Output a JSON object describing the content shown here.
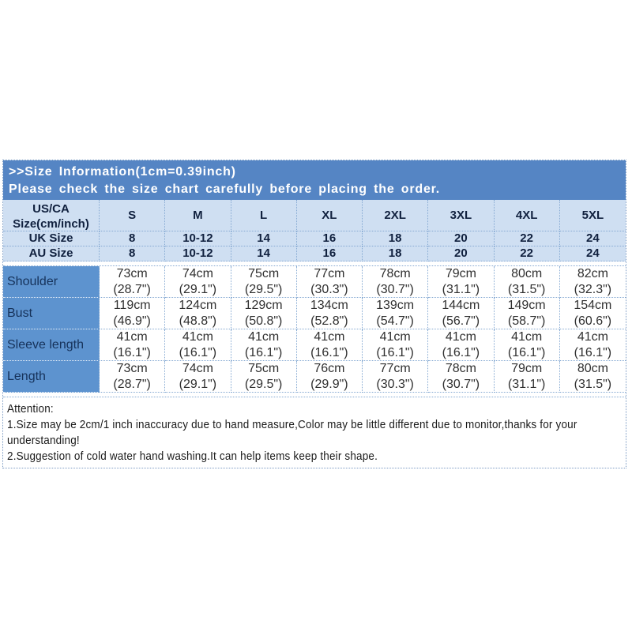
{
  "banner": {
    "title": ">>Size Information(1cm=0.39inch)",
    "subtitle": "Please check the size chart carefully before placing the order."
  },
  "table": {
    "corner": [
      "US/CA",
      "Size(cm/inch)"
    ],
    "sizes": [
      "S",
      "M",
      "L",
      "XL",
      "2XL",
      "3XL",
      "4XL",
      "5XL"
    ],
    "uk": {
      "label": "UK Size",
      "values": [
        "8",
        "10-12",
        "14",
        "16",
        "18",
        "20",
        "22",
        "24"
      ]
    },
    "au": {
      "label": "AU Size",
      "values": [
        "8",
        "10-12",
        "14",
        "16",
        "18",
        "20",
        "22",
        "24"
      ]
    },
    "rows": [
      {
        "label": "Shoulder",
        "cm": [
          "73cm",
          "74cm",
          "75cm",
          "77cm",
          "78cm",
          "79cm",
          "80cm",
          "82cm"
        ],
        "in": [
          "(28.7\")",
          "(29.1\")",
          "(29.5\")",
          "(30.3\")",
          "(30.7\")",
          "(31.1\")",
          "(31.5\")",
          "(32.3\")"
        ]
      },
      {
        "label": "Bust",
        "cm": [
          "119cm",
          "124cm",
          "129cm",
          "134cm",
          "139cm",
          "144cm",
          "149cm",
          "154cm"
        ],
        "in": [
          "(46.9\")",
          "(48.8\")",
          "(50.8\")",
          "(52.8\")",
          "(54.7\")",
          "(56.7\")",
          "(58.7\")",
          "(60.6\")"
        ]
      },
      {
        "label": "Sleeve length",
        "cm": [
          "41cm",
          "41cm",
          "41cm",
          "41cm",
          "41cm",
          "41cm",
          "41cm",
          "41cm"
        ],
        "in": [
          "(16.1\")",
          "(16.1\")",
          "(16.1\")",
          "(16.1\")",
          "(16.1\")",
          "(16.1\")",
          "(16.1\")",
          "(16.1\")"
        ]
      },
      {
        "label": "Length",
        "cm": [
          "73cm",
          "74cm",
          "75cm",
          "76cm",
          "77cm",
          "78cm",
          "79cm",
          "80cm"
        ],
        "in": [
          "(28.7\")",
          "(29.1\")",
          "(29.5\")",
          "(29.9\")",
          "(30.3\")",
          "(30.7\")",
          "(31.1\")",
          "(31.5\")"
        ]
      }
    ]
  },
  "attention": [
    "Attention:",
    "1.Size may be 2cm/1 inch inaccuracy due to hand measure,Color may be little different due to monitor,thanks for your",
    "understanding!",
    "2.Suggestion of cold water hand washing.It can help items keep their shape."
  ],
  "colors": {
    "banner_bg": "#5585c4",
    "header_bg": "#cfdff2",
    "label_bg": "#5d93cf",
    "header_text": "#10203e",
    "label_text": "#16325a",
    "value_text": "#303030",
    "grid_line": "#85a9d2"
  }
}
